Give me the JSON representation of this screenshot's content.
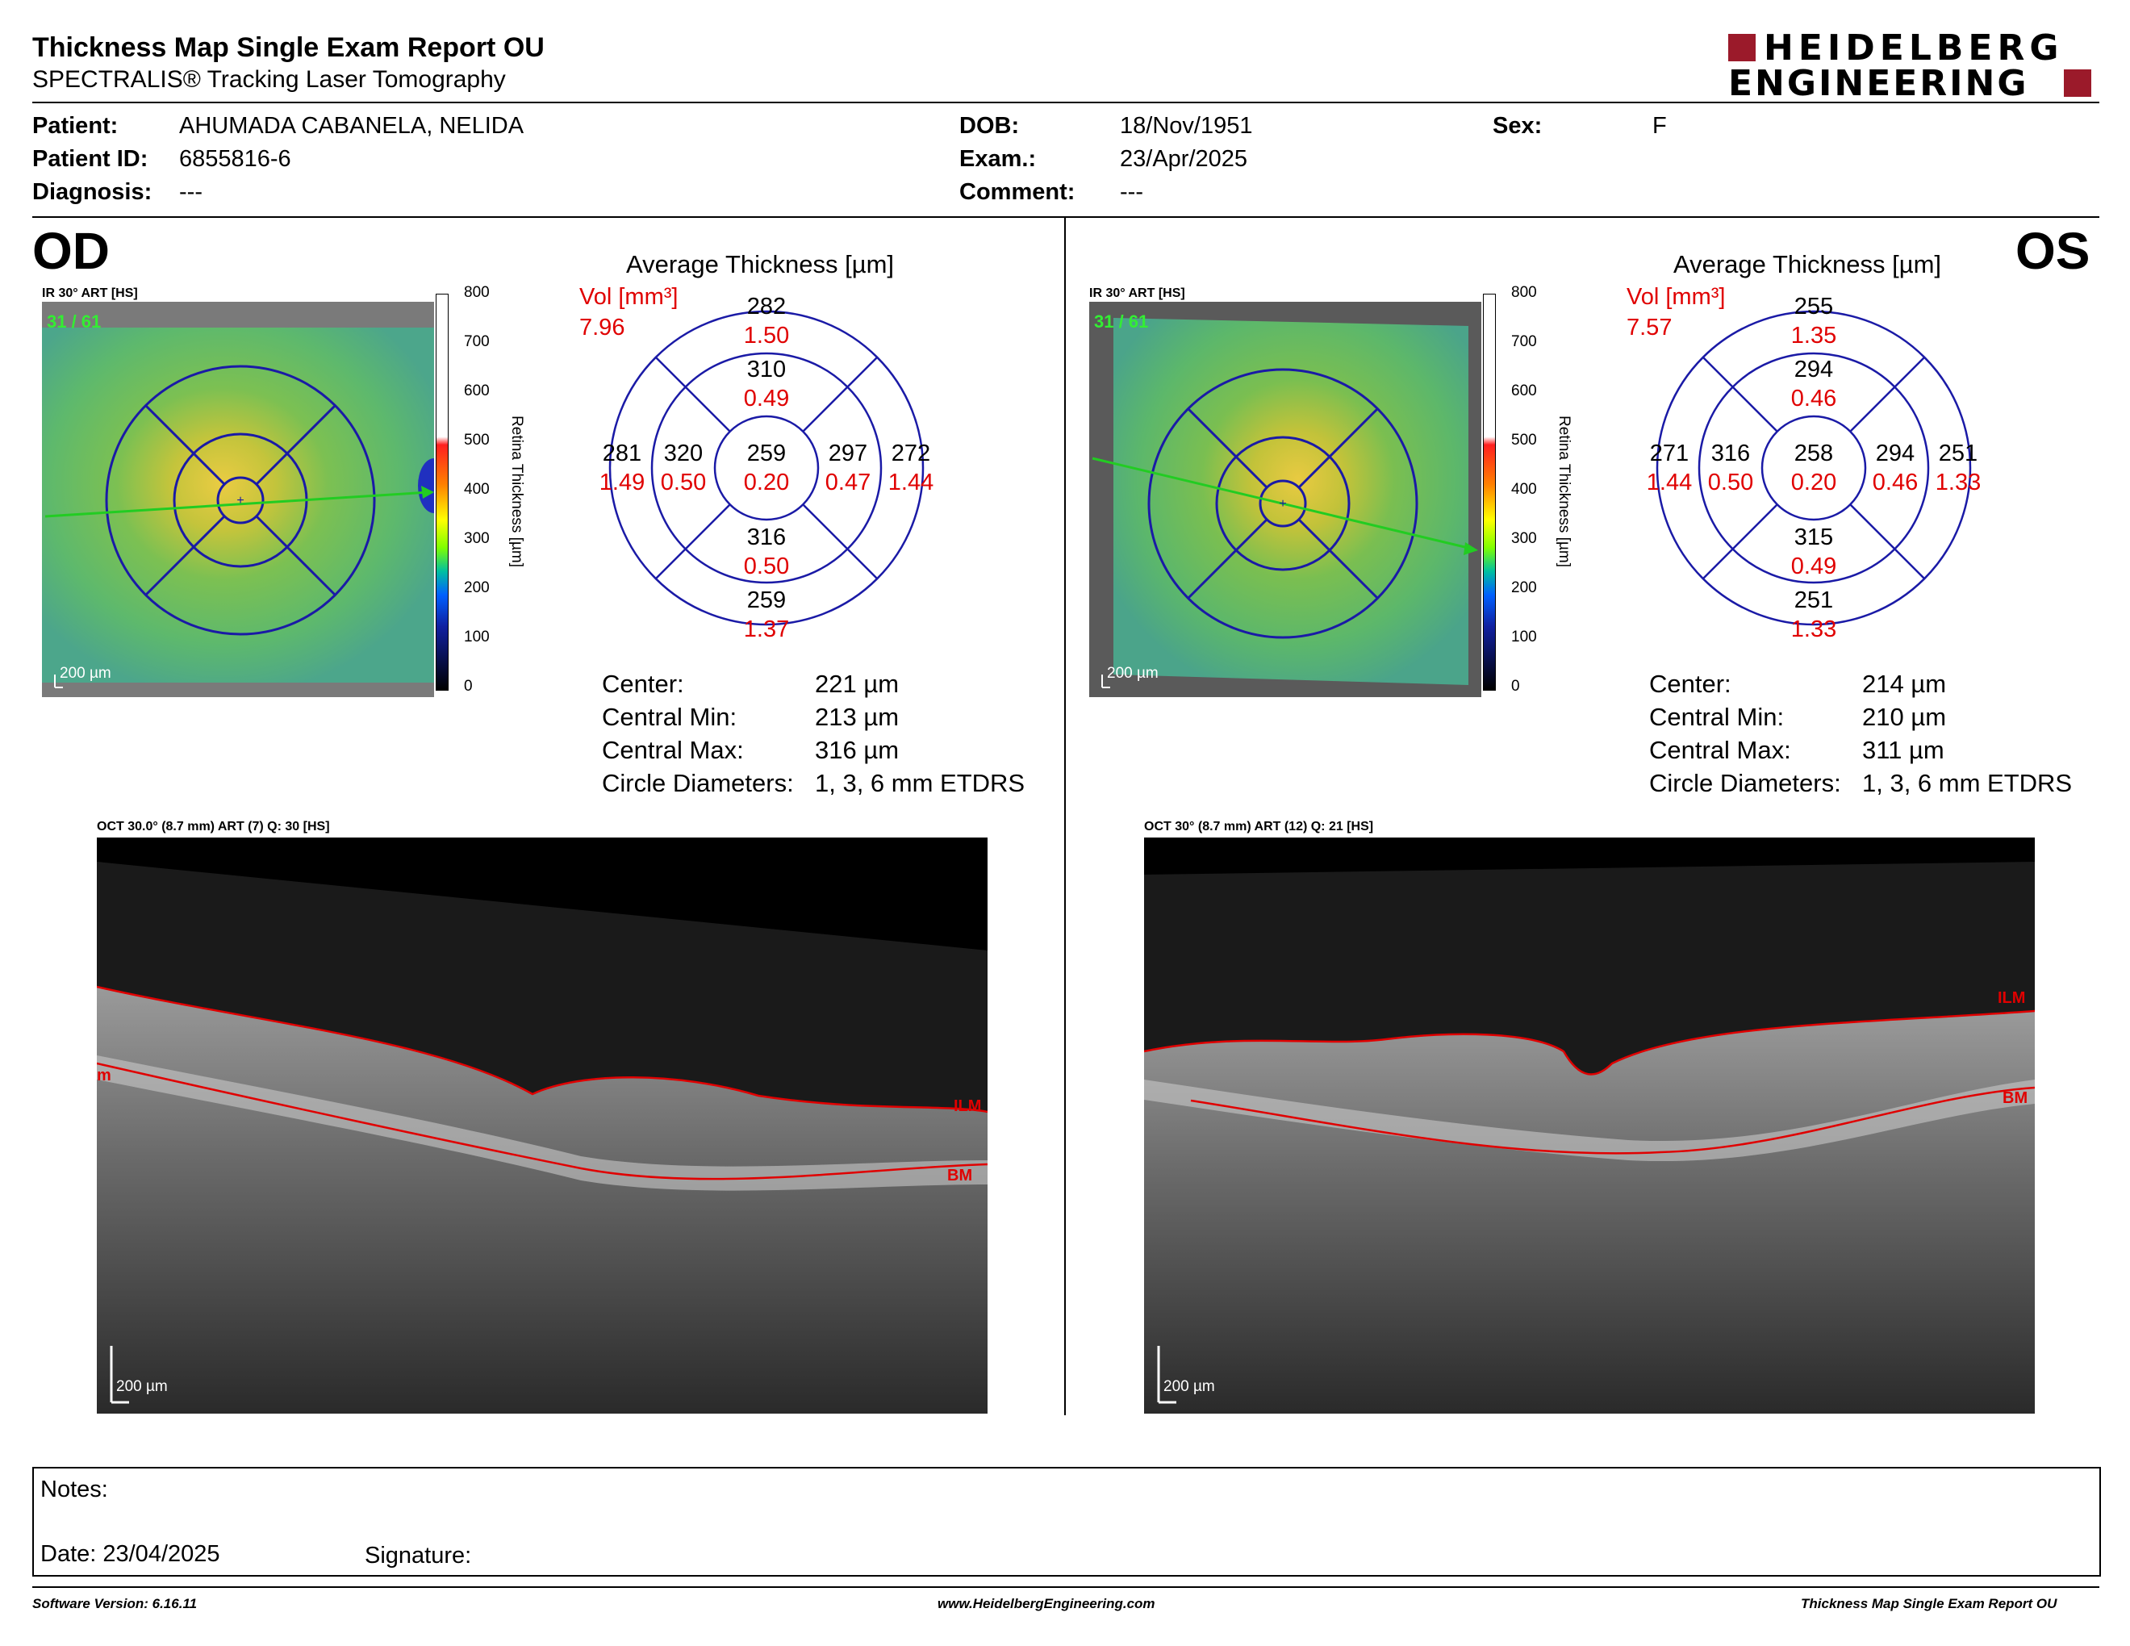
{
  "header": {
    "title": "Thickness Map Single Exam Report OU",
    "subtitle": "SPECTRALIS® Tracking Laser Tomography",
    "logo_line1": "HEIDELBERG",
    "logo_line2": "ENGINEERING"
  },
  "patient": {
    "patient_label": "Patient:",
    "patient_value": "AHUMADA CABANELA, NELIDA",
    "id_label": "Patient ID:",
    "id_value": "6855816-6",
    "diagnosis_label": "Diagnosis:",
    "diagnosis_value": "---",
    "dob_label": "DOB:",
    "dob_value": "18/Nov/1951",
    "exam_label": "Exam.:",
    "exam_value": "23/Apr/2025",
    "comment_label": "Comment:",
    "comment_value": "---",
    "sex_label": "Sex:",
    "sex_value": "F"
  },
  "od": {
    "eye": "OD",
    "map_title": "IR 30° ART [HS]",
    "map_frame": "31 / 61",
    "scale_bar": "200 µm",
    "colorbar_title": "Retina  Thickness [µm]",
    "colorbar_ticks": [
      "800",
      "700",
      "600",
      "500",
      "400",
      "300",
      "200",
      "100",
      "0"
    ],
    "chart_title": "Average Thickness [µm]",
    "vol_label": "Vol [mm³]",
    "vol_value": "7.96",
    "sectors": {
      "outer_top": {
        "t": "282",
        "v": "1.50"
      },
      "inner_top": {
        "t": "310",
        "v": "0.49"
      },
      "outer_left": {
        "t": "281",
        "v": "1.49"
      },
      "inner_left": {
        "t": "320",
        "v": "0.50"
      },
      "center": {
        "t": "259",
        "v": "0.20"
      },
      "inner_right": {
        "t": "297",
        "v": "0.47"
      },
      "outer_right": {
        "t": "272",
        "v": "1.44"
      },
      "inner_bottom": {
        "t": "316",
        "v": "0.50"
      },
      "outer_bottom": {
        "t": "259",
        "v": "1.37"
      }
    },
    "stats": {
      "center_label": "Center:",
      "center_value": "221 µm",
      "min_label": "Central Min:",
      "min_value": "213 µm",
      "max_label": "Central Max:",
      "max_value": "316 µm",
      "diam_label": "Circle Diameters:",
      "diam_value": "1, 3, 6 mm ETDRS"
    },
    "oct_title": "OCT 30.0° (8.7 mm) ART (7) Q: 30 [HS]",
    "oct_scale": "200 µm",
    "ilm_label": "ILM",
    "bm_label": "BM",
    "left_label": "m"
  },
  "os": {
    "eye": "OS",
    "map_title": "IR 30° ART [HS]",
    "map_frame": "31 / 61",
    "scale_bar": "200 µm",
    "colorbar_title": "Retina  Thickness [µm]",
    "colorbar_ticks": [
      "800",
      "700",
      "600",
      "500",
      "400",
      "300",
      "200",
      "100",
      "0"
    ],
    "chart_title": "Average Thickness [µm]",
    "vol_label": "Vol [mm³]",
    "vol_value": "7.57",
    "sectors": {
      "outer_top": {
        "t": "255",
        "v": "1.35"
      },
      "inner_top": {
        "t": "294",
        "v": "0.46"
      },
      "outer_left": {
        "t": "271",
        "v": "1.44"
      },
      "inner_left": {
        "t": "316",
        "v": "0.50"
      },
      "center": {
        "t": "258",
        "v": "0.20"
      },
      "inner_right": {
        "t": "294",
        "v": "0.46"
      },
      "outer_right": {
        "t": "251",
        "v": "1.33"
      },
      "inner_bottom": {
        "t": "315",
        "v": "0.49"
      },
      "outer_bottom": {
        "t": "251",
        "v": "1.33"
      }
    },
    "stats": {
      "center_label": "Center:",
      "center_value": "214 µm",
      "min_label": "Central Min:",
      "min_value": "210 µm",
      "max_label": "Central Max:",
      "max_value": "311 µm",
      "diam_label": "Circle Diameters:",
      "diam_value": "1, 3, 6 mm ETDRS"
    },
    "oct_title": "OCT 30° (8.7 mm) ART (12) Q: 21 [HS]",
    "oct_scale": "200 µm",
    "ilm_label": "ILM",
    "bm_label": "BM"
  },
  "notes": {
    "notes_label": "Notes:",
    "date_label": "Date: 23/04/2025",
    "signature_label": "Signature:"
  },
  "footer": {
    "software": "Software Version: 6.16.11",
    "website": "www.HeidelbergEngineering.com",
    "report": "Thickness Map Single Exam Report OU"
  },
  "colors": {
    "ring_blue": "#1a1aa6",
    "value_red": "#e00000",
    "logo_red": "#9b1a2a"
  }
}
